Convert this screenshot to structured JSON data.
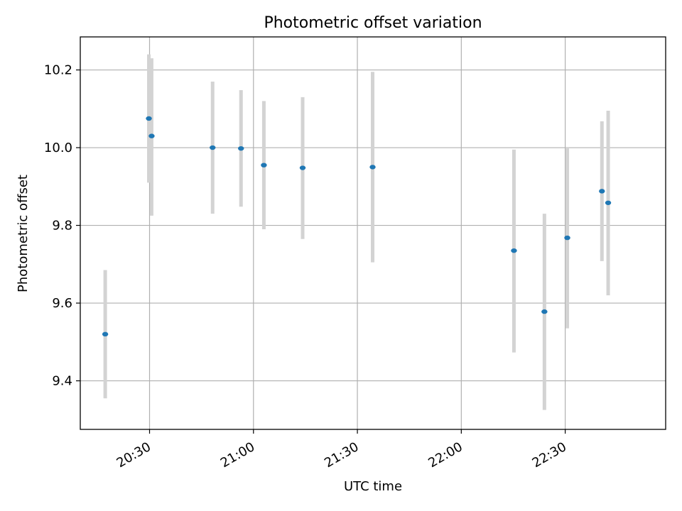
{
  "chart_data": {
    "type": "scatter",
    "title": "Photometric offset variation",
    "xlabel": "UTC time",
    "ylabel": "Photometric offset",
    "xlim": [
      "20:10",
      "22:59"
    ],
    "ylim": [
      9.275,
      10.285
    ],
    "grid": true,
    "x_ticks": [
      "20:30",
      "21:00",
      "21:30",
      "22:00",
      "22:30"
    ],
    "y_ticks": [
      9.4,
      9.6,
      9.8,
      10.0,
      10.2
    ],
    "y_tick_labels": [
      "9.4",
      "9.6",
      "9.8",
      "10.0",
      "10.2"
    ],
    "series": [
      {
        "marker_color": "#1f77b4",
        "errorbar_color": "#d3d3d3",
        "points": [
          {
            "time": "20:17:12",
            "y": 9.52,
            "ylow": 9.355,
            "yhigh": 9.685
          },
          {
            "time": "20:29:48",
            "y": 10.075,
            "ylow": 9.91,
            "yhigh": 10.24
          },
          {
            "time": "20:30:36",
            "y": 10.03,
            "ylow": 9.825,
            "yhigh": 10.23
          },
          {
            "time": "20:48:12",
            "y": 10.0,
            "ylow": 9.83,
            "yhigh": 10.17
          },
          {
            "time": "20:56:24",
            "y": 9.998,
            "ylow": 9.848,
            "yhigh": 10.148
          },
          {
            "time": "21:03:00",
            "y": 9.955,
            "ylow": 9.79,
            "yhigh": 10.12
          },
          {
            "time": "21:14:12",
            "y": 9.948,
            "ylow": 9.765,
            "yhigh": 10.13
          },
          {
            "time": "21:34:24",
            "y": 9.95,
            "ylow": 9.705,
            "yhigh": 10.195
          },
          {
            "time": "22:15:12",
            "y": 9.735,
            "ylow": 9.473,
            "yhigh": 9.995
          },
          {
            "time": "22:24:00",
            "y": 9.578,
            "ylow": 9.325,
            "yhigh": 9.83
          },
          {
            "time": "22:30:36",
            "y": 9.768,
            "ylow": 9.535,
            "yhigh": 10.0
          },
          {
            "time": "22:40:36",
            "y": 9.888,
            "ylow": 9.708,
            "yhigh": 10.068
          },
          {
            "time": "22:42:24",
            "y": 9.858,
            "ylow": 9.62,
            "yhigh": 10.095
          }
        ]
      }
    ]
  }
}
